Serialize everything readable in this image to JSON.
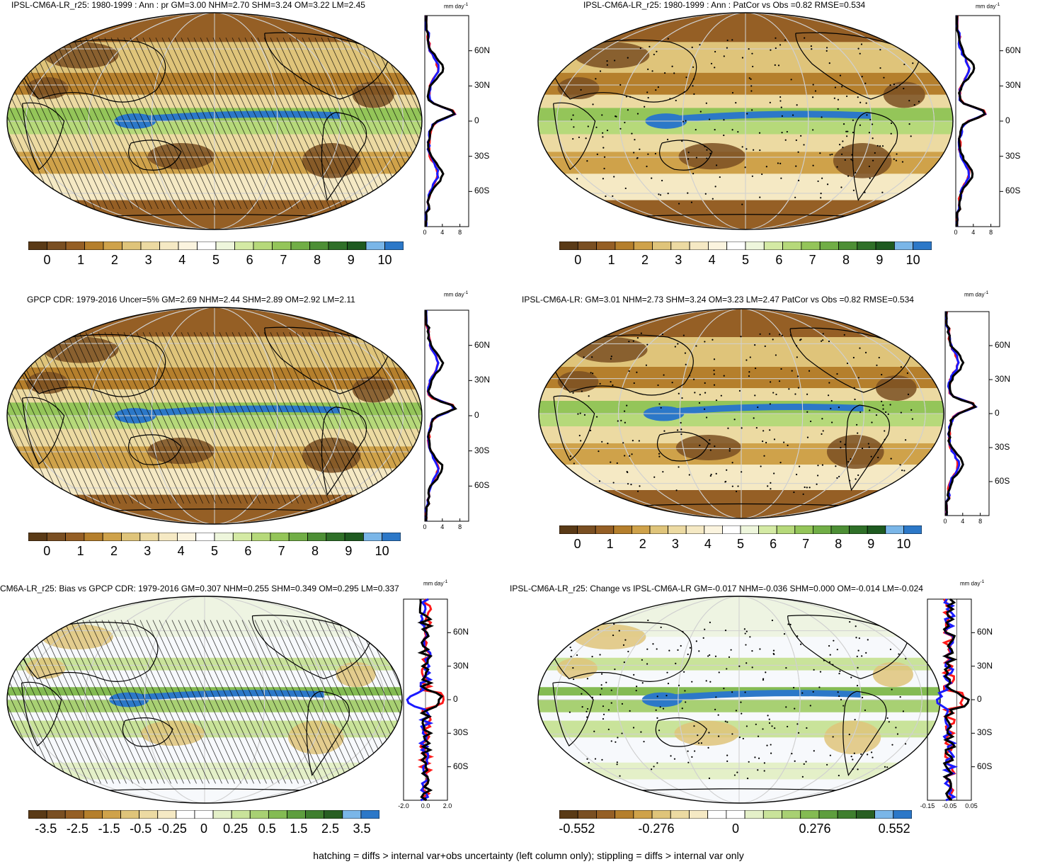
{
  "colors": {
    "precip_scale": [
      "#5a3a16",
      "#7a4f22",
      "#955f25",
      "#b57f2c",
      "#cfa24a",
      "#dfc47a",
      "#ecdaa2",
      "#f5e9c4",
      "#fbf4df",
      "#ffffff",
      "#eef6dc",
      "#d4eaa4",
      "#b6d97a",
      "#94c559",
      "#71ae46",
      "#4d8f35",
      "#2f7028",
      "#1e5a20",
      "#7ab6e8",
      "#2c78c8"
    ],
    "diff_scale": [
      "#5a3a16",
      "#7a4f22",
      "#955f25",
      "#b57f2c",
      "#cfa24a",
      "#dfc47a",
      "#ecdaa2",
      "#f5e9c4",
      "#ffffff",
      "#ffffff",
      "#e4f0c8",
      "#c9e39a",
      "#a8d073",
      "#84bb53",
      "#5e9e3e",
      "#3f7f2e",
      "#285f22",
      "#7ab6e8",
      "#2c78c8"
    ],
    "model": "#000000",
    "obs_red": "#ff1a1a",
    "obs_blue": "#1a1aff"
  },
  "panels": [
    {
      "title": "IPSL-CM6A-LR_r25: 1980-1999 : Ann : pr GM=3.00 NHM=2.70 SHM=3.24 OM=3.22 LM=2.45",
      "colorbar_labels": [
        "0",
        "1",
        "2",
        "3",
        "4",
        "5",
        "6",
        "7",
        "8",
        "9",
        "10"
      ],
      "scale": "precip",
      "marks": "hatch",
      "profile": {
        "unit": "mm day",
        "xticks": [
          "0",
          "4",
          "8"
        ],
        "xrange": [
          0,
          10
        ]
      }
    },
    {
      "title": "IPSL-CM6A-LR_r25: 1980-1999 : Ann : PatCor vs Obs =0.82 RMSE=0.534",
      "colorbar_labels": [
        "0",
        "1",
        "2",
        "3",
        "4",
        "5",
        "6",
        "7",
        "8",
        "9",
        "10"
      ],
      "scale": "precip",
      "marks": "stipple",
      "profile": {
        "unit": "mm day",
        "xticks": [
          "0",
          "4",
          "8"
        ],
        "xrange": [
          0,
          10
        ]
      }
    },
    {
      "title": "GPCP CDR: 1979-2016 Uncer=5% GM=2.69 NHM=2.44 SHM=2.89 OM=2.92 LM=2.11",
      "colorbar_labels": [
        "0",
        "1",
        "2",
        "3",
        "4",
        "5",
        "6",
        "7",
        "8",
        "9",
        "10"
      ],
      "scale": "precip",
      "marks": "hatch",
      "profile": {
        "unit": "mm day",
        "xticks": [
          "0",
          "4",
          "8"
        ],
        "xrange": [
          0,
          10
        ]
      }
    },
    {
      "title": "IPSL-CM6A-LR: GM=3.01 NHM=2.73 SHM=3.24 OM=3.23 LM=2.47 PatCor vs Obs =0.82 RMSE=0.534",
      "colorbar_labels": [
        "0",
        "1",
        "2",
        "3",
        "4",
        "5",
        "6",
        "7",
        "8",
        "9",
        "10"
      ],
      "scale": "precip",
      "marks": "stipple",
      "profile": {
        "unit": "mm day",
        "xticks": [
          "0",
          "4",
          "8"
        ],
        "xrange": [
          0,
          10
        ]
      }
    },
    {
      "title": "CM6A-LR_r25: Bias vs GPCP CDR: 1979-2016 GM=0.307 NHM=0.255 SHM=0.349 OM=0.295 LM=0.337",
      "colorbar_labels": [
        "-3.5",
        "-2.5",
        "-1.5",
        "-0.5",
        "-0.25",
        "0",
        "0.25",
        "0.5",
        "1.5",
        "2.5",
        "3.5"
      ],
      "scale": "diff",
      "marks": "hatch",
      "profile": {
        "unit": "mm day",
        "xticks": [
          "-2.0",
          "0.0",
          "2.0"
        ],
        "xrange": [
          -2,
          2
        ]
      }
    },
    {
      "title": "IPSL-CM6A-LR_r25: Change vs IPSL-CM6A-LR GM=-0.017 NHM=-0.036 SHM=0.000 OM=-0.014 LM=-0.024",
      "colorbar_labels": [
        "-0.552",
        "-0.276",
        "0",
        "0.276",
        "0.552"
      ],
      "scale": "diff",
      "marks": "stipple",
      "profile": {
        "unit": "mm day",
        "xticks": [
          "-0.15",
          "-0.05",
          "0.05"
        ],
        "xrange": [
          -0.2,
          0.1
        ]
      }
    }
  ],
  "lat_labels": [
    "60N",
    "30N",
    "0",
    "30S",
    "60S"
  ],
  "footer": "hatching = diffs > internal var+obs uncertainty (left column only); stippling = diffs > internal var only"
}
